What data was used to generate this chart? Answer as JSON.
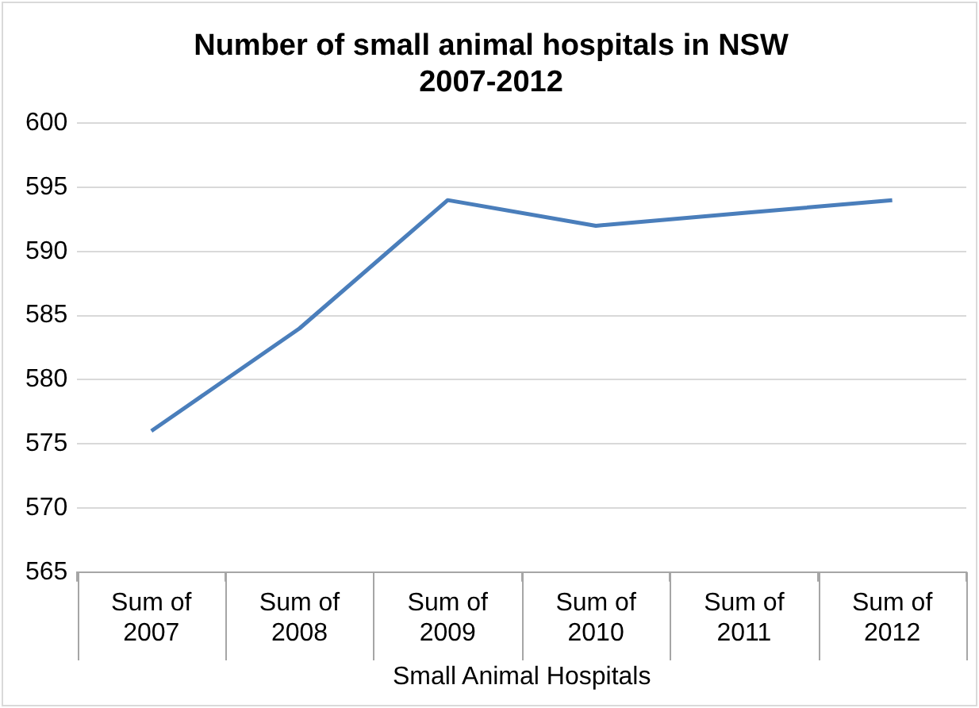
{
  "chart_data": {
    "type": "line",
    "title": "Number of small animal hospitals in NSW\n2007-2012",
    "xlabel": "Small Animal Hospitals",
    "categories": [
      "Sum of 2007",
      "Sum of 2008",
      "Sum of 2009",
      "Sum of 2010",
      "Sum of 2011",
      "Sum of 2012"
    ],
    "series": [
      {
        "color": "#4a7ebb",
        "values": [
          576,
          584,
          594,
          592,
          593,
          594
        ]
      }
    ],
    "ylim": [
      565,
      600
    ],
    "yticks": [
      565,
      570,
      575,
      580,
      585,
      590,
      595,
      600
    ],
    "grid": "y",
    "legend": false,
    "marker": "none",
    "line_style": "solid"
  }
}
